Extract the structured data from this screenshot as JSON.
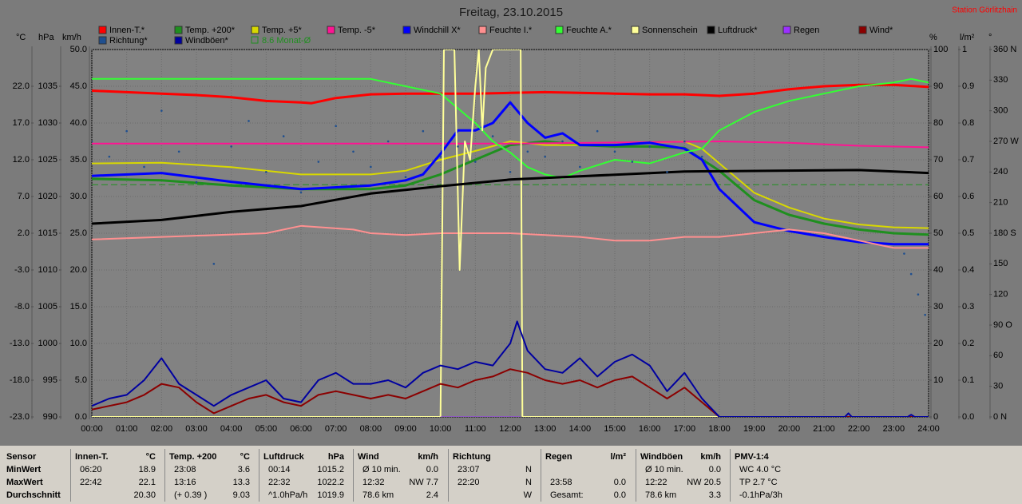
{
  "chart_data": {
    "type": "line",
    "title": "Freitag, 23.10.2015",
    "station": "Station Görlitzhain",
    "xlim": [
      0,
      24
    ],
    "xticks": [
      {
        "value": 0,
        "label": "00:00"
      },
      {
        "value": 1,
        "label": "01:00"
      },
      {
        "value": 2,
        "label": "02:00"
      },
      {
        "value": 3,
        "label": "03:00"
      },
      {
        "value": 4,
        "label": "04:00"
      },
      {
        "value": 5,
        "label": "05:00"
      },
      {
        "value": 6,
        "label": "06:00"
      },
      {
        "value": 7,
        "label": "07:00"
      },
      {
        "value": 8,
        "label": "08:00"
      },
      {
        "value": 9,
        "label": "09:00"
      },
      {
        "value": 10,
        "label": "10:00"
      },
      {
        "value": 11,
        "label": "11:00"
      },
      {
        "value": 12,
        "label": "12:00"
      },
      {
        "value": 13,
        "label": "13:00"
      },
      {
        "value": 14,
        "label": "14:00"
      },
      {
        "value": 15,
        "label": "15:00"
      },
      {
        "value": 16,
        "label": "16:00"
      },
      {
        "value": 17,
        "label": "17:00"
      },
      {
        "value": 18,
        "label": "18:00"
      },
      {
        "value": 19,
        "label": "19:00"
      },
      {
        "value": 20,
        "label": "20:00"
      },
      {
        "value": 21,
        "label": "21:00"
      },
      {
        "value": 22,
        "label": "22:00"
      },
      {
        "value": 23,
        "label": "23:00"
      },
      {
        "value": 24,
        "label": "24:00"
      }
    ],
    "grid": true,
    "axes": [
      {
        "unit": "°C",
        "side": "left",
        "lim": [
          -23,
          27
        ],
        "ticks": [
          {
            "value": 22,
            "label": "22.0"
          },
          {
            "value": 17,
            "label": "17.0"
          },
          {
            "value": 12,
            "label": "12.0"
          },
          {
            "value": 7,
            "label": "7.0"
          },
          {
            "value": 2,
            "label": "2.0"
          },
          {
            "value": -3,
            "label": "-3.0"
          },
          {
            "value": -8,
            "label": "-8.0"
          },
          {
            "value": -13,
            "label": "-13.0"
          },
          {
            "value": -18,
            "label": "-18.0"
          },
          {
            "value": -23,
            "label": "-23.0"
          }
        ]
      },
      {
        "unit": "hPa",
        "side": "left",
        "lim": [
          990,
          1040
        ],
        "ticks": [
          1035,
          1030,
          1025,
          1020,
          1015,
          1010,
          1005,
          1000,
          995,
          990
        ]
      },
      {
        "unit": "km/h",
        "side": "left",
        "lim": [
          0,
          50
        ],
        "ticks": [
          {
            "value": 50,
            "label": "50.0"
          },
          {
            "value": 45,
            "label": "45.0"
          },
          {
            "value": 40,
            "label": "40.0"
          },
          {
            "value": 35,
            "label": "35.0"
          },
          {
            "value": 30,
            "label": "30.0"
          },
          {
            "value": 25,
            "label": "25.0"
          },
          {
            "value": 20,
            "label": "20.0"
          },
          {
            "value": 15,
            "label": "15.0"
          },
          {
            "value": 10,
            "label": "10.0"
          },
          {
            "value": 5,
            "label": "5.0"
          },
          {
            "value": 0,
            "label": "0.0"
          }
        ]
      },
      {
        "unit": "%",
        "side": "right",
        "lim": [
          0,
          100
        ],
        "ticks": [
          100,
          90,
          80,
          70,
          60,
          50,
          40,
          30,
          20,
          10,
          0
        ]
      },
      {
        "unit": "l/m²",
        "side": "right",
        "lim": [
          0,
          1
        ],
        "ticks": [
          1,
          0.9,
          0.8,
          0.7,
          0.6,
          0.5,
          0.4,
          0.3,
          0.2,
          0.1,
          {
            "value": 0,
            "label": "0.0"
          }
        ]
      },
      {
        "unit": "°",
        "side": "right",
        "lim": [
          0,
          360
        ],
        "ticks": [
          {
            "value": 360,
            "label": "360 N"
          },
          330,
          300,
          {
            "value": 270,
            "label": "270 W"
          },
          240,
          210,
          {
            "value": 180,
            "label": "180 S"
          },
          150,
          120,
          {
            "value": 90,
            "label": "90 O"
          },
          60,
          30,
          {
            "value": 0,
            "label": "0 N"
          }
        ]
      }
    ],
    "series": [
      {
        "name": "Innen-T.*",
        "color": "#ff0000",
        "axis": "°C",
        "width": 3,
        "x": [
          0,
          1,
          2,
          3,
          4,
          5,
          6,
          6.3,
          7,
          8,
          9,
          10,
          11,
          12,
          13,
          14,
          15,
          16,
          17,
          18,
          19,
          20,
          21,
          22,
          23,
          24
        ],
        "values": [
          21.4,
          21.2,
          21.0,
          20.8,
          20.5,
          20.0,
          19.8,
          19.7,
          20.4,
          20.9,
          21.0,
          21.0,
          21.0,
          21.1,
          21.2,
          21.1,
          21.0,
          20.9,
          20.9,
          20.7,
          21.0,
          21.6,
          22.0,
          22.2,
          22.2,
          21.9
        ]
      },
      {
        "name": "Temp. +200*",
        "color": "#1f8f1f",
        "axis": "°C",
        "width": 3,
        "x": [
          0,
          2,
          4,
          6,
          8,
          9,
          10,
          11,
          12,
          13,
          14,
          15,
          16,
          17,
          18,
          19,
          20,
          21,
          22,
          23,
          24
        ],
        "values": [
          9.4,
          9.2,
          8.5,
          8.0,
          8.0,
          8.5,
          10.0,
          12.0,
          14.0,
          14.5,
          14.0,
          13.8,
          13.8,
          13.6,
          10.5,
          6.5,
          4.5,
          3.3,
          2.5,
          2.0,
          1.8
        ]
      },
      {
        "name": "Temp. +5*",
        "color": "#d8d800",
        "axis": "°C",
        "width": 2,
        "x": [
          0,
          2,
          4,
          6,
          8,
          9,
          10,
          11,
          12,
          13,
          14,
          15,
          16,
          17,
          17.5,
          18,
          19,
          20,
          21,
          22,
          23,
          24
        ],
        "values": [
          11.5,
          11.6,
          11.0,
          10.0,
          10.0,
          10.5,
          12.0,
          13.2,
          14.5,
          14.0,
          14.0,
          14.0,
          14.3,
          14.5,
          13.5,
          11.5,
          7.5,
          5.5,
          4.0,
          3.2,
          2.8,
          2.7
        ]
      },
      {
        "name": "Temp. -5*",
        "color": "#ff1493",
        "axis": "°C",
        "width": 2,
        "x": [
          0,
          6,
          12,
          18,
          20,
          22,
          24
        ],
        "values": [
          14.2,
          14.2,
          14.2,
          14.5,
          14.3,
          13.9,
          13.7
        ]
      },
      {
        "name": "Windchill X*",
        "color": "#0000ff",
        "axis": "°C",
        "width": 3,
        "x": [
          0,
          2,
          3,
          4,
          6,
          8,
          9,
          9.5,
          10,
          10.5,
          11,
          11.5,
          12,
          12.5,
          13,
          13.5,
          14,
          15,
          16,
          17,
          17.5,
          18,
          19,
          20,
          21,
          22,
          23,
          24
        ],
        "values": [
          9.8,
          10.2,
          9.6,
          9.0,
          8.0,
          8.5,
          9.2,
          10.0,
          12.8,
          16.0,
          16.0,
          17.0,
          19.8,
          17.0,
          15.0,
          15.6,
          14.0,
          14.0,
          14.3,
          13.5,
          12.0,
          8.0,
          3.5,
          2.3,
          1.5,
          0.8,
          0.5,
          0.5
        ]
      },
      {
        "name": "Feuchte I.*",
        "color": "#ff9090",
        "axis": "%",
        "width": 2,
        "x": [
          0,
          5,
          6,
          7.5,
          8,
          9,
          10,
          11,
          12,
          13,
          14,
          15,
          16,
          17,
          18,
          19,
          20,
          21,
          22,
          23,
          24
        ],
        "values": [
          48.3,
          50,
          52,
          51,
          50,
          49.5,
          50,
          50,
          50,
          49.5,
          49,
          48,
          48,
          49,
          49,
          50,
          51,
          50,
          48,
          46,
          46
        ]
      },
      {
        "name": "Feuchte A.*",
        "color": "#33ff33",
        "axis": "%",
        "width": 2,
        "x": [
          0,
          8,
          9,
          10,
          11,
          11.5,
          12,
          12.5,
          13,
          13.5,
          14,
          15,
          16,
          17,
          17.5,
          18,
          19,
          20,
          21,
          22,
          23,
          23.5,
          24
        ],
        "values": [
          92,
          92,
          90,
          88,
          80,
          75,
          72,
          68,
          66,
          65,
          67,
          70,
          69,
          72,
          73,
          78,
          83,
          86,
          88,
          90,
          91,
          92,
          91
        ]
      },
      {
        "name": "Sonnenschein",
        "color": "#ffff99",
        "axis": "%",
        "width": 2,
        "x": [
          0,
          10.0,
          10.1,
          10.4,
          10.55,
          10.7,
          10.85,
          11.0,
          11.1,
          11.2,
          11.3,
          11.5,
          12.3,
          12.35,
          24
        ],
        "values": [
          0,
          0,
          100,
          100,
          40,
          75,
          70,
          90,
          100,
          78,
          95,
          100,
          100,
          0,
          0
        ]
      },
      {
        "name": "Luftdruck*",
        "color": "#000000",
        "axis": "hPa",
        "width": 3,
        "x": [
          0,
          2,
          4,
          6,
          8,
          10,
          12,
          17,
          22,
          24
        ],
        "values": [
          1016.3,
          1016.8,
          1017.9,
          1018.7,
          1020.4,
          1021.4,
          1022.3,
          1023.4,
          1023.6,
          1023.2
        ]
      },
      {
        "name": "Regen",
        "color": "#9b30ff",
        "axis": "l/m²",
        "width": 1,
        "x": [
          10.0,
          12.3
        ],
        "values": [
          0,
          0
        ]
      },
      {
        "name": "Wind*",
        "color": "#8b0000",
        "axis": "km/h",
        "width": 2,
        "x": [
          0,
          0.5,
          1,
          1.5,
          2,
          2.5,
          3,
          3.5,
          4,
          4.5,
          5,
          5.5,
          6,
          6.5,
          7,
          7.5,
          8,
          8.5,
          9,
          9.5,
          10,
          10.5,
          11,
          11.5,
          12,
          12.5,
          13,
          13.5,
          14,
          14.5,
          15,
          15.5,
          16,
          16.5,
          17,
          17.5,
          18,
          24
        ],
        "values": [
          1.0,
          1.5,
          2.0,
          3.0,
          4.5,
          4.0,
          2.0,
          0.5,
          1.5,
          2.5,
          3.0,
          2.0,
          1.5,
          3.0,
          3.5,
          3.0,
          2.5,
          3.0,
          2.5,
          3.5,
          4.5,
          4.0,
          5.0,
          5.5,
          6.5,
          6.0,
          5.0,
          4.5,
          5.0,
          4.0,
          5.0,
          5.5,
          4.0,
          2.5,
          4.0,
          2.0,
          0,
          0
        ]
      },
      {
        "name": "Richtung*",
        "color": "#1f4f8f",
        "axis": "°",
        "mode": "markers",
        "x": [
          0,
          0.5,
          1,
          1.5,
          2,
          2.5,
          3,
          3.5,
          4,
          4.5,
          5,
          5.5,
          6,
          6.5,
          7,
          7.5,
          8,
          8.5,
          9,
          9.5,
          10,
          10.5,
          11,
          11.5,
          12,
          12.5,
          13,
          13.5,
          14,
          14.5,
          15,
          15.5,
          16,
          16.5,
          17,
          17.5,
          23.3,
          23.5,
          23.7,
          23.9
        ],
        "values": [
          270,
          255,
          280,
          245,
          300,
          260,
          230,
          150,
          265,
          290,
          240,
          275,
          220,
          250,
          285,
          260,
          245,
          270,
          235,
          280,
          255,
          265,
          250,
          275,
          240,
          260,
          255,
          270,
          245,
          280,
          260,
          250,
          265,
          240,
          270,
          255,
          160,
          140,
          120,
          100
        ]
      },
      {
        "name": "Windböen*",
        "color": "#0000a0",
        "axis": "km/h",
        "width": 2,
        "x": [
          0,
          0.5,
          1,
          1.5,
          2,
          2.5,
          3,
          3.5,
          4,
          4.5,
          5,
          5.5,
          6,
          6.5,
          7,
          7.5,
          8,
          8.5,
          9,
          9.5,
          10,
          10.5,
          11,
          11.5,
          12,
          12.2,
          12.5,
          13,
          13.5,
          14,
          14.5,
          15,
          15.5,
          16,
          16.5,
          17,
          17.5,
          18,
          21.6,
          21.7,
          21.8,
          23.4,
          23.5,
          23.6,
          24
        ],
        "values": [
          1.5,
          2.5,
          3.0,
          5.0,
          8.0,
          4.5,
          3.0,
          1.5,
          3.0,
          4.0,
          5.0,
          2.5,
          2.0,
          5.0,
          6.0,
          4.5,
          4.5,
          5.0,
          4.0,
          6.0,
          7.0,
          6.5,
          7.5,
          7.0,
          10.0,
          13.0,
          9.0,
          6.5,
          6.0,
          8.0,
          5.5,
          7.5,
          8.5,
          7.0,
          3.5,
          6.0,
          2.5,
          0,
          0,
          0.5,
          0,
          0,
          0.3,
          0,
          0
        ]
      }
    ],
    "reference_line": {
      "label": "8.6 Monat-Ø",
      "value": 8.6,
      "axis": "°C",
      "color": "#1f8f1f"
    }
  },
  "summary": {
    "row_labels": [
      "Sensor",
      "MinWert",
      "MaxWert",
      "Durchschnitt"
    ],
    "panels": [
      {
        "title": "Innen-T.",
        "unit": "°C",
        "rows": [
          [
            "06:20",
            "18.9"
          ],
          [
            "22:42",
            "22.1"
          ],
          [
            null,
            "20.30"
          ]
        ]
      },
      {
        "title": "Temp. +200",
        "unit": "°C",
        "rows": [
          [
            "23:08",
            "3.6"
          ],
          [
            "13:16",
            "13.3"
          ],
          [
            "(+ 0.39 )",
            "9.03"
          ]
        ]
      },
      {
        "title": "Luftdruck",
        "unit": "hPa",
        "rows": [
          [
            "00:14",
            "1015.2"
          ],
          [
            "22:32",
            "1022.2"
          ],
          [
            "^1.0hPa/h",
            "1019.9"
          ]
        ]
      },
      {
        "title": "Wind",
        "unit": "km/h",
        "rows": [
          [
            "Ø 10 min.",
            "0.0"
          ],
          [
            "12:32",
            "NW 7.7"
          ],
          [
            "78.6 km",
            "2.4"
          ]
        ]
      },
      {
        "title": "Richtung",
        "unit": null,
        "rows": [
          [
            "23:07",
            "N"
          ],
          [
            "22:20",
            "N"
          ],
          [
            null,
            "W"
          ]
        ]
      },
      {
        "title": "Regen",
        "unit": "l/m²",
        "rows": [
          [
            null,
            null
          ],
          [
            "23:58",
            "0.0"
          ],
          [
            "Gesamt:",
            "0.0"
          ]
        ]
      },
      {
        "title": "Windböen",
        "unit": "km/h",
        "rows": [
          [
            "Ø 10 min.",
            "0.0"
          ],
          [
            "12:22",
            "NW 20.5"
          ],
          [
            "78.6 km",
            "3.3"
          ]
        ]
      },
      {
        "title": "PMV-1:4",
        "unit": null,
        "rows": [
          [
            "WC 4.0 °C",
            null
          ],
          [
            "TP 2.7 °C",
            null
          ],
          [
            "-0.1hPa/3h",
            null
          ]
        ]
      }
    ]
  }
}
